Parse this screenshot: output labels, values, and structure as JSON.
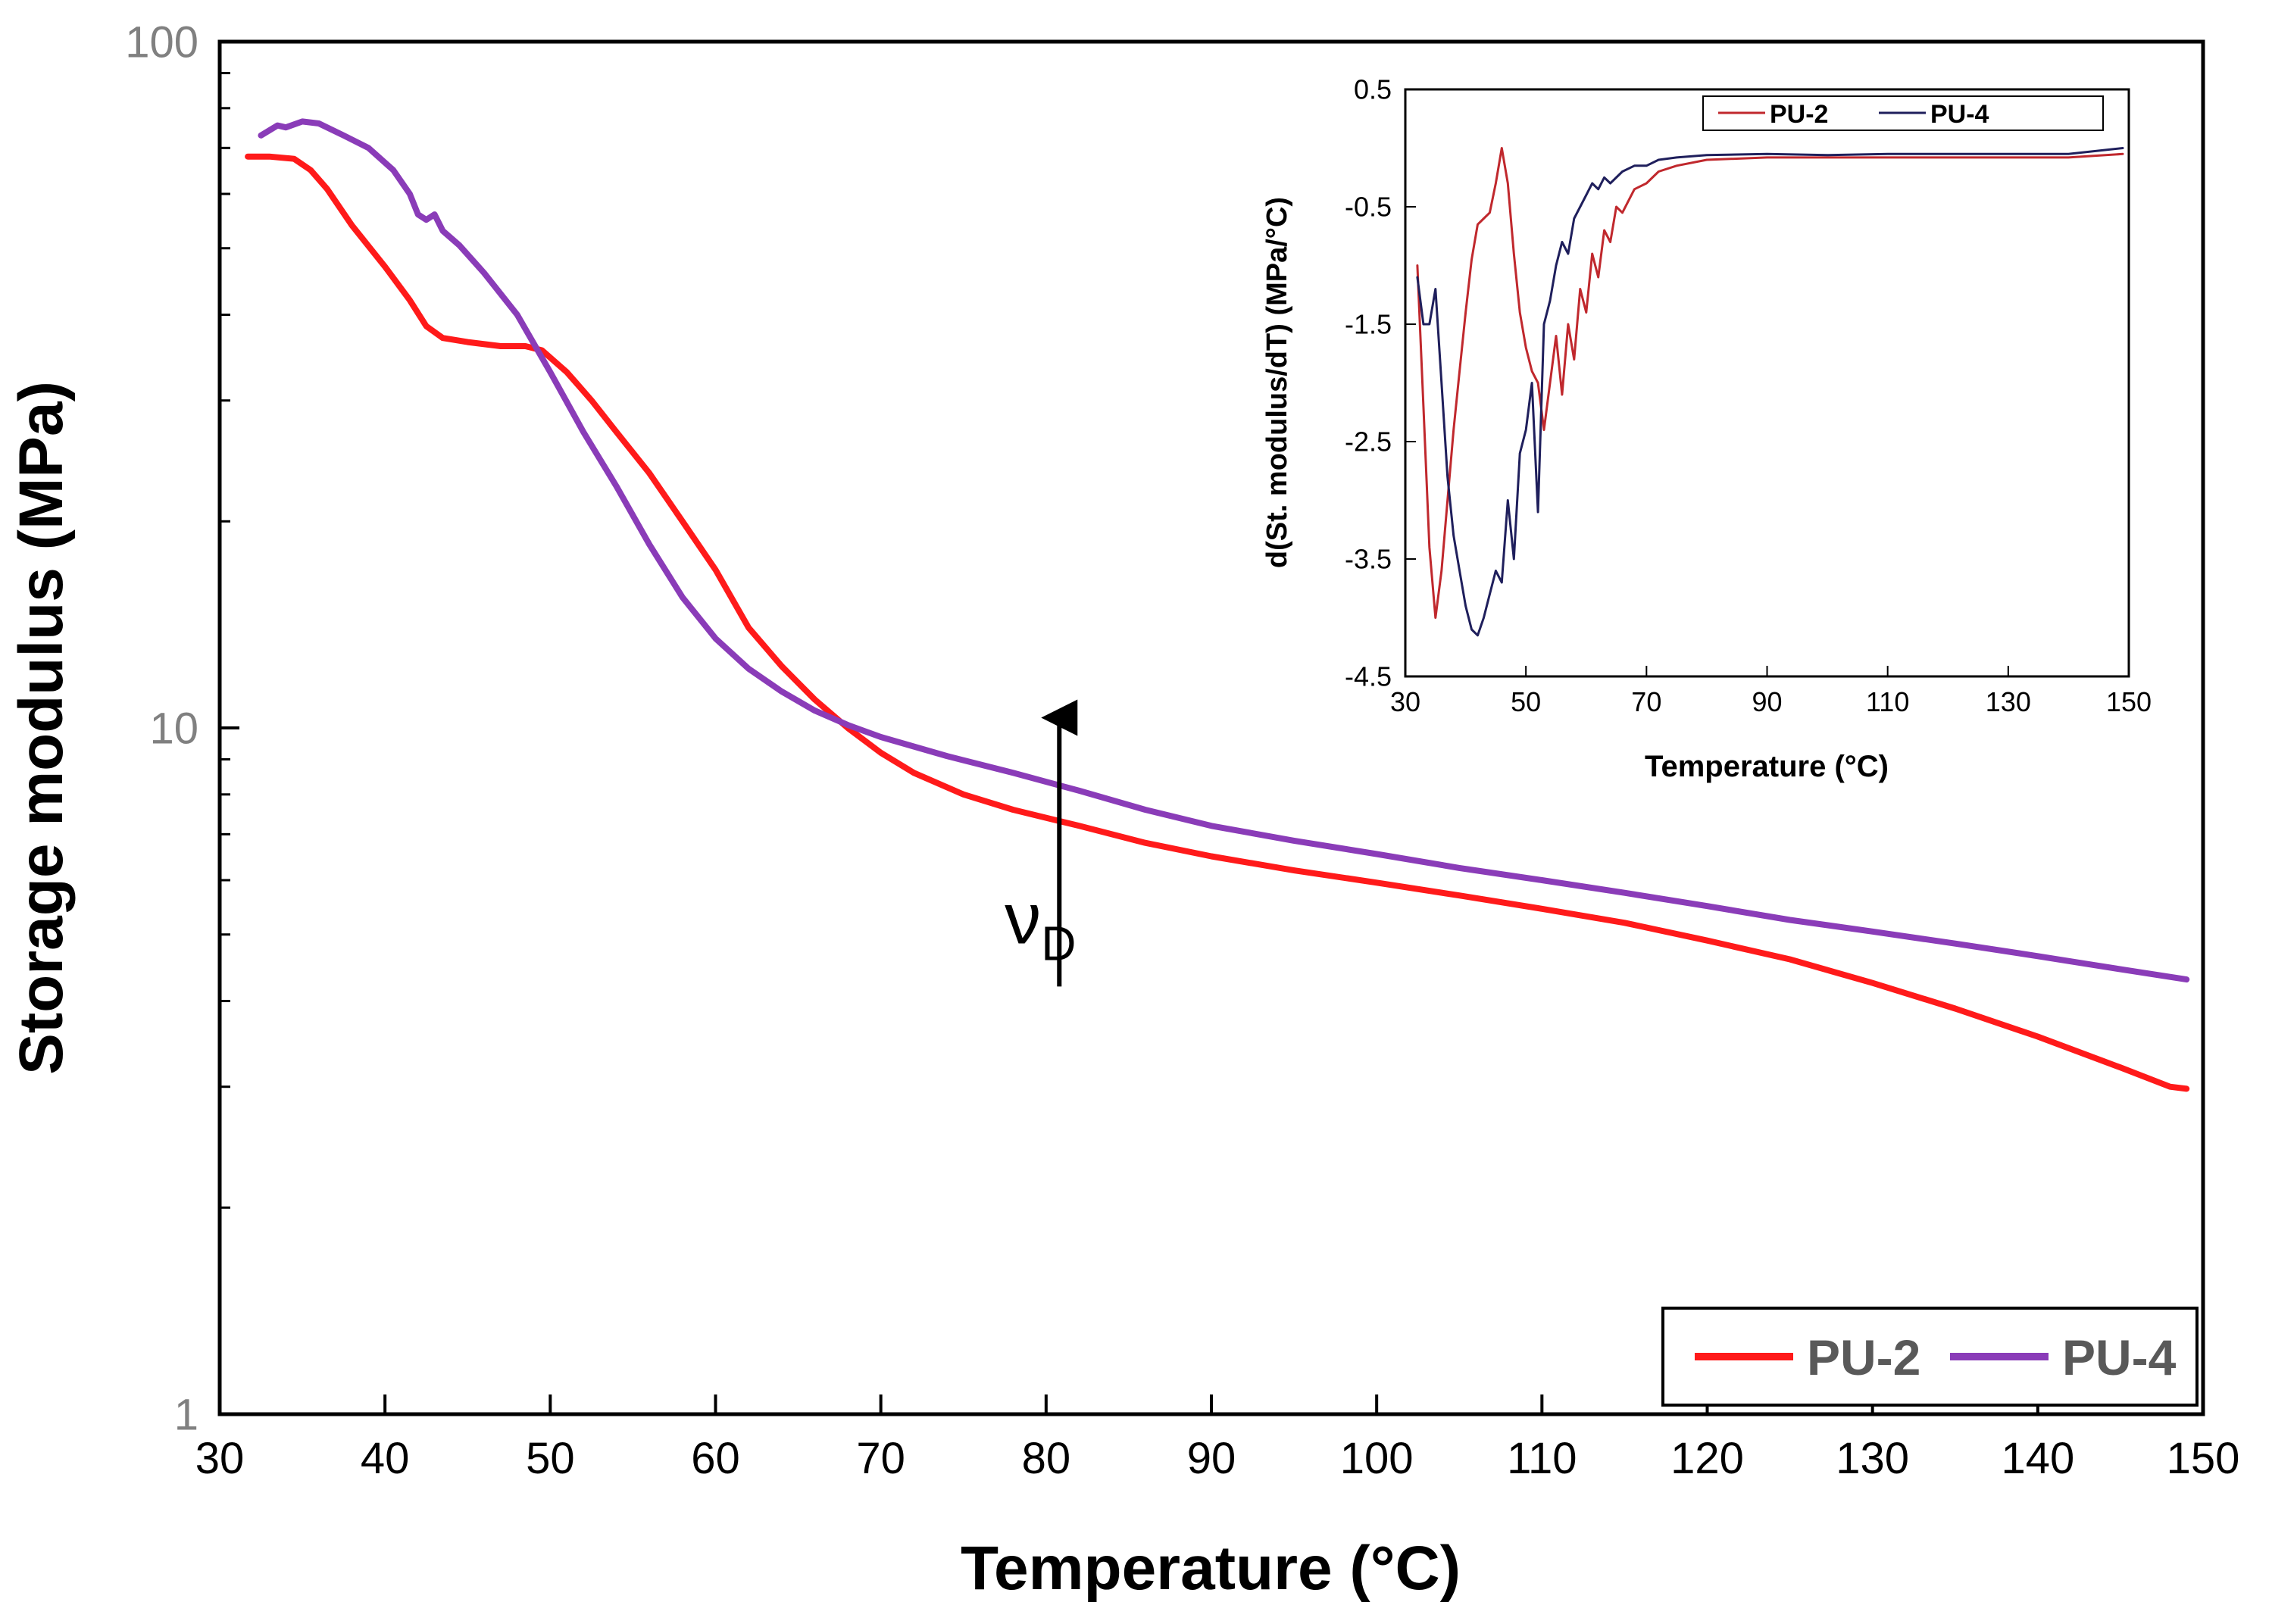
{
  "chart_data": [
    {
      "id": "main",
      "type": "line",
      "title": "",
      "xlabel": "Temperature (°C)",
      "ylabel": "Storage modulus (MPa)",
      "xlim": [
        30,
        150
      ],
      "ylim": [
        1,
        100
      ],
      "yscale": "log",
      "x_ticks": [
        30,
        40,
        50,
        60,
        70,
        80,
        90,
        100,
        110,
        120,
        130,
        140,
        150
      ],
      "y_ticks": [
        1,
        10,
        100
      ],
      "grid": false,
      "legend": "bottom-right",
      "annotation": {
        "symbol": "ν",
        "subscript": "D",
        "arrow_x": 80.8,
        "arrow_from": 4.2,
        "arrow_to": 11.0,
        "text_x": 77.5,
        "text_y": 4.85
      },
      "series": [
        {
          "name": "PU-2",
          "color": "#ff1a1a",
          "points": [
            [
              31.7,
              68
            ],
            [
              33,
              68
            ],
            [
              34.5,
              67.5
            ],
            [
              35.5,
              65
            ],
            [
              36.5,
              61
            ],
            [
              38,
              54
            ],
            [
              40,
              47
            ],
            [
              41.5,
              42
            ],
            [
              42.5,
              38.5
            ],
            [
              43.5,
              37
            ],
            [
              45,
              36.5
            ],
            [
              47,
              36
            ],
            [
              48.5,
              36
            ],
            [
              49.5,
              35.5
            ],
            [
              51,
              33
            ],
            [
              52.5,
              30
            ],
            [
              54,
              27
            ],
            [
              56,
              23.5
            ],
            [
              58,
              20
            ],
            [
              60,
              17
            ],
            [
              62,
              14
            ],
            [
              64,
              12.3
            ],
            [
              66,
              11
            ],
            [
              68,
              10
            ],
            [
              70,
              9.2
            ],
            [
              72,
              8.6
            ],
            [
              75,
              8
            ],
            [
              78,
              7.6
            ],
            [
              82,
              7.2
            ],
            [
              86,
              6.8
            ],
            [
              90,
              6.5
            ],
            [
              95,
              6.2
            ],
            [
              100,
              5.95
            ],
            [
              105,
              5.7
            ],
            [
              110,
              5.45
            ],
            [
              115,
              5.2
            ],
            [
              120,
              4.9
            ],
            [
              125,
              4.6
            ],
            [
              130,
              4.25
            ],
            [
              135,
              3.9
            ],
            [
              140,
              3.55
            ],
            [
              145,
              3.2
            ],
            [
              148,
              3.0
            ],
            [
              149,
              2.98
            ]
          ]
        },
        {
          "name": "PU-4",
          "color": "#8a3cb8",
          "points": [
            [
              32.5,
              73
            ],
            [
              33.5,
              75.5
            ],
            [
              34,
              75
            ],
            [
              35,
              76.5
            ],
            [
              36,
              76
            ],
            [
              37.5,
              73
            ],
            [
              39,
              70
            ],
            [
              40.5,
              65
            ],
            [
              41.5,
              60
            ],
            [
              42,
              56
            ],
            [
              42.5,
              55
            ],
            [
              43,
              56
            ],
            [
              43.5,
              53
            ],
            [
              44.5,
              50.5
            ],
            [
              46,
              46
            ],
            [
              48,
              40
            ],
            [
              50,
              33
            ],
            [
              52,
              27
            ],
            [
              54,
              22.5
            ],
            [
              56,
              18.5
            ],
            [
              58,
              15.5
            ],
            [
              60,
              13.5
            ],
            [
              62,
              12.2
            ],
            [
              64,
              11.3
            ],
            [
              66,
              10.6
            ],
            [
              68,
              10.1
            ],
            [
              70,
              9.7
            ],
            [
              74,
              9.1
            ],
            [
              78,
              8.6
            ],
            [
              82,
              8.1
            ],
            [
              86,
              7.6
            ],
            [
              90,
              7.2
            ],
            [
              95,
              6.85
            ],
            [
              100,
              6.55
            ],
            [
              105,
              6.25
            ],
            [
              110,
              6.0
            ],
            [
              115,
              5.75
            ],
            [
              120,
              5.5
            ],
            [
              125,
              5.25
            ],
            [
              130,
              5.05
            ],
            [
              135,
              4.85
            ],
            [
              140,
              4.65
            ],
            [
              145,
              4.45
            ],
            [
              149,
              4.3
            ]
          ]
        }
      ]
    },
    {
      "id": "inset",
      "type": "line",
      "title": "",
      "xlabel": "Temperature (°C)",
      "ylabel": "d(St. modulus/dT)  (MPa/°C)",
      "xlim": [
        30,
        150
      ],
      "ylim": [
        -4.5,
        0.5
      ],
      "x_ticks": [
        30,
        50,
        70,
        90,
        110,
        130,
        150
      ],
      "y_ticks": [
        0.5,
        -0.5,
        -1.5,
        -2.5,
        -3.5,
        -4.5
      ],
      "grid": false,
      "legend": "top",
      "series": [
        {
          "name": "PU-2",
          "color": "#c0282d",
          "points": [
            [
              32,
              -1.0
            ],
            [
              33,
              -2.2
            ],
            [
              34,
              -3.4
            ],
            [
              35,
              -4.0
            ],
            [
              36,
              -3.6
            ],
            [
              37,
              -3.0
            ],
            [
              38,
              -2.4
            ],
            [
              39,
              -1.9
            ],
            [
              40,
              -1.4
            ],
            [
              41,
              -0.95
            ],
            [
              42,
              -0.65
            ],
            [
              43,
              -0.6
            ],
            [
              44,
              -0.55
            ],
            [
              45,
              -0.3
            ],
            [
              46,
              0.0
            ],
            [
              47,
              -0.3
            ],
            [
              48,
              -0.9
            ],
            [
              49,
              -1.4
            ],
            [
              50,
              -1.7
            ],
            [
              51,
              -1.9
            ],
            [
              52,
              -2.0
            ],
            [
              53,
              -2.4
            ],
            [
              54,
              -2.0
            ],
            [
              55,
              -1.6
            ],
            [
              56,
              -2.1
            ],
            [
              57,
              -1.5
            ],
            [
              58,
              -1.8
            ],
            [
              59,
              -1.2
            ],
            [
              60,
              -1.4
            ],
            [
              61,
              -0.9
            ],
            [
              62,
              -1.1
            ],
            [
              63,
              -0.7
            ],
            [
              64,
              -0.8
            ],
            [
              65,
              -0.5
            ],
            [
              66,
              -0.55
            ],
            [
              68,
              -0.35
            ],
            [
              70,
              -0.3
            ],
            [
              72,
              -0.2
            ],
            [
              75,
              -0.15
            ],
            [
              80,
              -0.1
            ],
            [
              90,
              -0.08
            ],
            [
              100,
              -0.08
            ],
            [
              110,
              -0.08
            ],
            [
              120,
              -0.08
            ],
            [
              130,
              -0.08
            ],
            [
              140,
              -0.08
            ],
            [
              149,
              -0.05
            ]
          ]
        },
        {
          "name": "PU-4",
          "color": "#1f1f5c",
          "points": [
            [
              32,
              -1.1
            ],
            [
              33,
              -1.5
            ],
            [
              34,
              -1.5
            ],
            [
              35,
              -1.2
            ],
            [
              36,
              -2.0
            ],
            [
              37,
              -2.8
            ],
            [
              38,
              -3.3
            ],
            [
              39,
              -3.6
            ],
            [
              40,
              -3.9
            ],
            [
              41,
              -4.1
            ],
            [
              42,
              -4.15
            ],
            [
              43,
              -4.0
            ],
            [
              44,
              -3.8
            ],
            [
              45,
              -3.6
            ],
            [
              46,
              -3.7
            ],
            [
              47,
              -3.0
            ],
            [
              48,
              -3.5
            ],
            [
              49,
              -2.6
            ],
            [
              50,
              -2.4
            ],
            [
              51,
              -2.0
            ],
            [
              52,
              -3.1
            ],
            [
              53,
              -1.5
            ],
            [
              54,
              -1.3
            ],
            [
              55,
              -1.0
            ],
            [
              56,
              -0.8
            ],
            [
              57,
              -0.9
            ],
            [
              58,
              -0.6
            ],
            [
              59,
              -0.5
            ],
            [
              60,
              -0.4
            ],
            [
              61,
              -0.3
            ],
            [
              62,
              -0.35
            ],
            [
              63,
              -0.25
            ],
            [
              64,
              -0.3
            ],
            [
              66,
              -0.2
            ],
            [
              68,
              -0.15
            ],
            [
              70,
              -0.15
            ],
            [
              72,
              -0.1
            ],
            [
              75,
              -0.08
            ],
            [
              80,
              -0.06
            ],
            [
              90,
              -0.05
            ],
            [
              100,
              -0.06
            ],
            [
              110,
              -0.05
            ],
            [
              120,
              -0.05
            ],
            [
              130,
              -0.05
            ],
            [
              140,
              -0.05
            ],
            [
              149,
              0.0
            ]
          ]
        }
      ]
    }
  ]
}
